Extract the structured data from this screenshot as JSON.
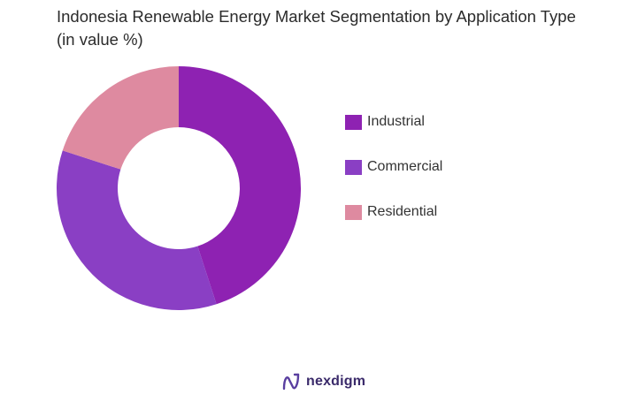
{
  "chart_data": {
    "type": "pie",
    "title": "Indonesia Renewable Energy Market Segmentation by Application Type (in value %)",
    "categories": [
      "Industrial",
      "Commercial",
      "Residential"
    ],
    "values": [
      45,
      35,
      20
    ],
    "colors": [
      "#8e22b2",
      "#8a3fc4",
      "#de8aa0"
    ],
    "donut": true,
    "legend_position": "right"
  },
  "brand": {
    "name": "nexdigm",
    "icon": "nexdigm-logo-icon"
  }
}
